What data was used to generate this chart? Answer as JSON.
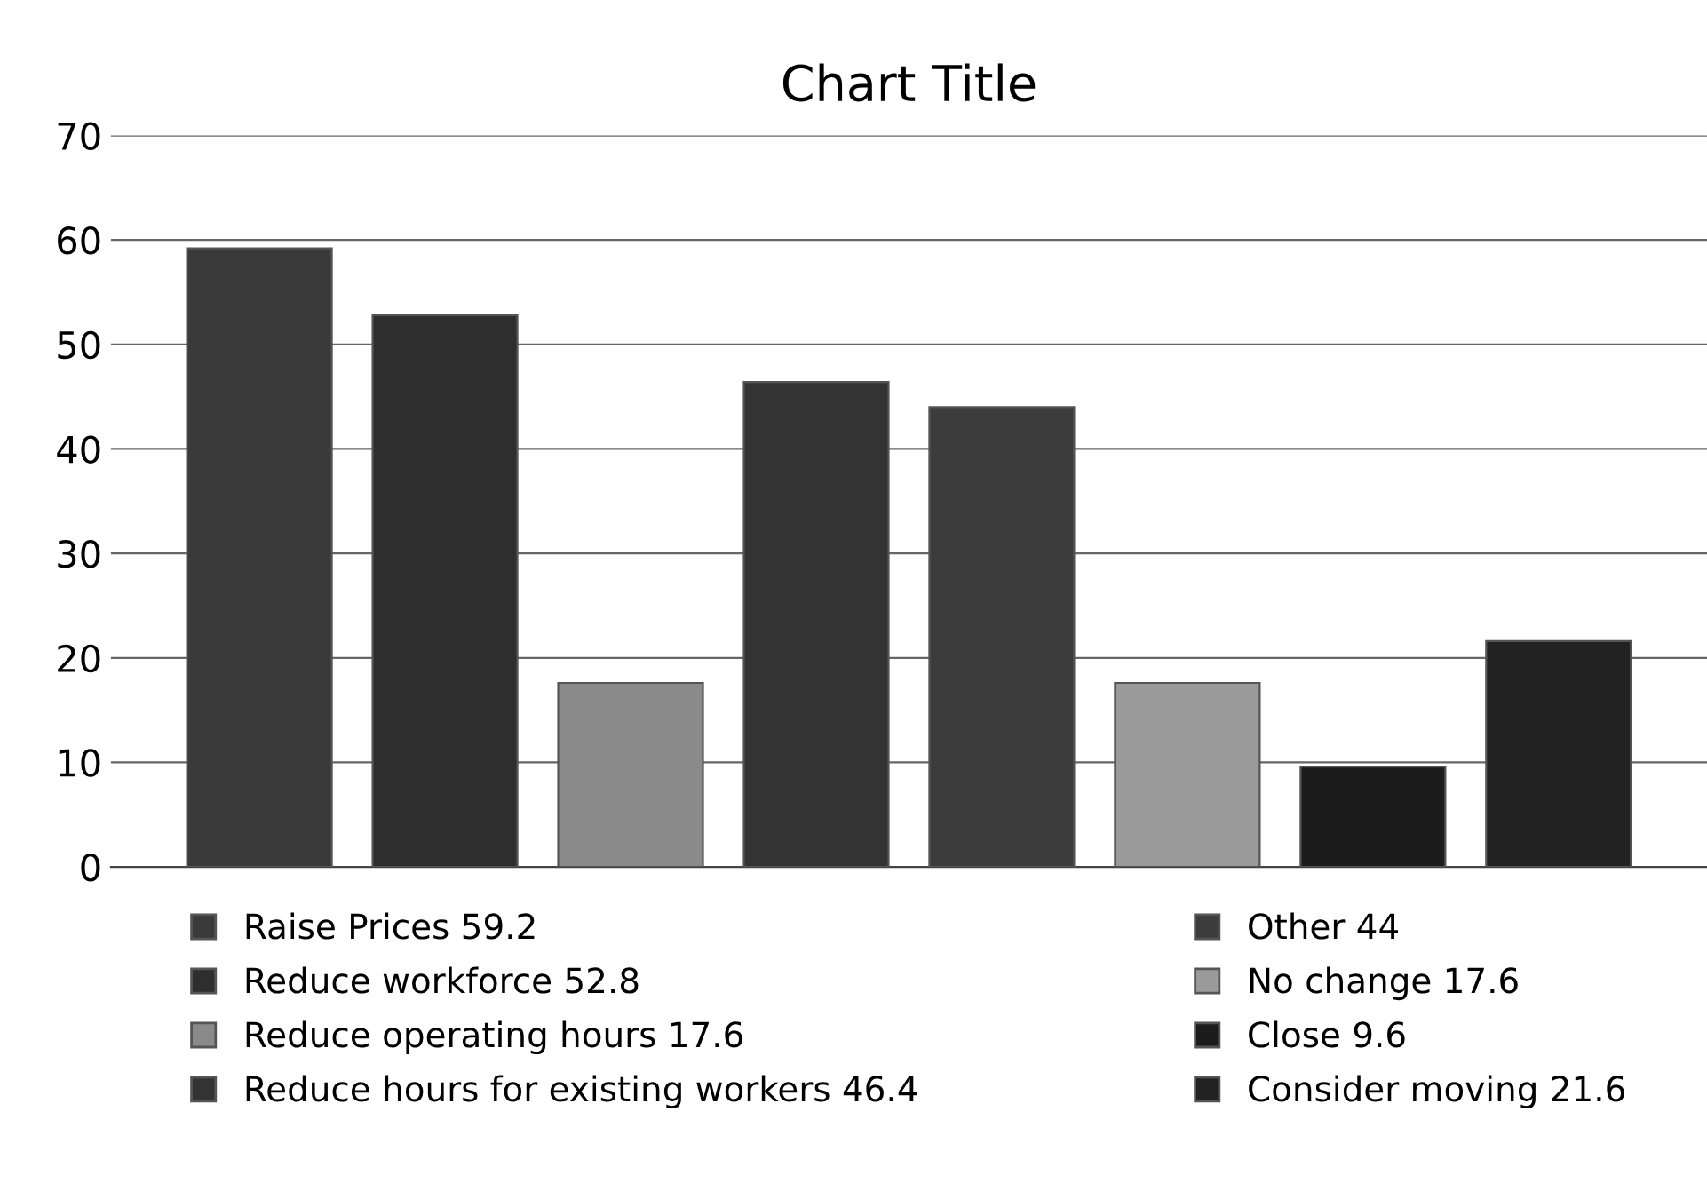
{
  "chart_data": {
    "type": "bar",
    "title": "Chart Title",
    "categories": [
      null,
      null,
      null,
      null,
      null,
      null,
      null,
      null
    ],
    "series": [
      {
        "name": "Raise Prices 59.2",
        "color": "#3a3a3a",
        "values": [
          59.2,
          null,
          null,
          null,
          null,
          null,
          null,
          null
        ]
      },
      {
        "name": "Reduce workforce 52.8",
        "color": "#2e2e2e",
        "values": [
          null,
          52.8,
          null,
          null,
          null,
          null,
          null,
          null
        ]
      },
      {
        "name": "Reduce operating hours 17.6",
        "color": "#8a8a8a",
        "values": [
          null,
          null,
          17.6,
          null,
          null,
          null,
          null,
          null
        ]
      },
      {
        "name": "Reduce hours for existing workers 46.4",
        "color": "#333333",
        "values": [
          null,
          null,
          null,
          46.4,
          null,
          null,
          null,
          null
        ]
      },
      {
        "name": "Other 44",
        "color": "#3c3c3c",
        "values": [
          null,
          null,
          null,
          null,
          44,
          null,
          null,
          null
        ]
      },
      {
        "name": "No change 17.6",
        "color": "#9a9a9a",
        "values": [
          null,
          null,
          null,
          null,
          null,
          17.6,
          null,
          null
        ]
      },
      {
        "name": "Close 9.6",
        "color": "#1c1c1c",
        "values": [
          null,
          null,
          null,
          null,
          null,
          null,
          9.6,
          null
        ]
      },
      {
        "name": "Consider moving 21.6",
        "color": "#222222",
        "values": [
          null,
          null,
          null,
          null,
          null,
          null,
          null,
          21.6
        ]
      }
    ],
    "ylim": [
      0,
      70
    ],
    "yticks": [
      0,
      10,
      20,
      30,
      40,
      50,
      60,
      70
    ],
    "grid": "y",
    "legend": "bottom"
  }
}
